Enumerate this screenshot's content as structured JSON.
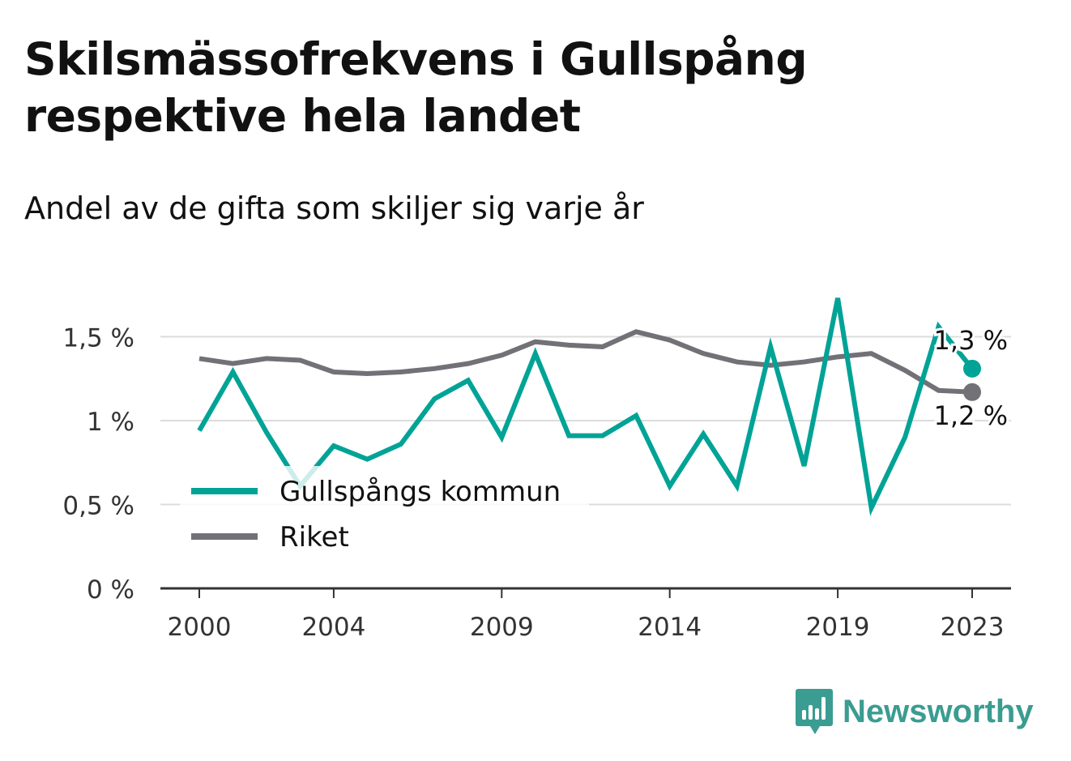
{
  "title": "Skilsmässofrekvens i Gullspång respektive hela landet",
  "subtitle": "Andel av de gifta som skiljer sig varje år",
  "brand": {
    "name": "Newsworthy",
    "icon": "bar-chart-speech-bubble-icon"
  },
  "colors": {
    "gullspang": "#00a396",
    "riket": "#727177",
    "grid": "#dcdcdc",
    "axis": "#333333",
    "brand": "#3b9c91"
  },
  "chart_data": {
    "type": "line",
    "x": [
      2000,
      2001,
      2002,
      2003,
      2004,
      2005,
      2006,
      2007,
      2008,
      2009,
      2010,
      2011,
      2012,
      2013,
      2014,
      2015,
      2016,
      2017,
      2018,
      2019,
      2020,
      2021,
      2022,
      2023
    ],
    "xticks": [
      2000,
      2004,
      2009,
      2014,
      2019,
      2023
    ],
    "xtick_labels": [
      "2000",
      "2004",
      "2009",
      "2014",
      "2019",
      "2023"
    ],
    "ylim": [
      0,
      1.8
    ],
    "yticks": [
      0,
      0.5,
      1,
      1.5
    ],
    "ytick_labels": [
      "0 %",
      "0,5 %",
      "1 %",
      "1,5 %"
    ],
    "grid": true,
    "legend_position": "bottom-left",
    "series": [
      {
        "name": "Gullspångs kommun",
        "key": "gullspang",
        "values": [
          0.94,
          1.29,
          0.93,
          0.61,
          0.85,
          0.77,
          0.86,
          1.13,
          1.24,
          0.9,
          1.4,
          0.91,
          0.91,
          1.03,
          0.61,
          0.92,
          0.61,
          1.44,
          0.73,
          1.73,
          0.48,
          0.9,
          1.56,
          1.31
        ],
        "end_label": "1,3 %"
      },
      {
        "name": "Riket",
        "key": "riket",
        "values": [
          1.37,
          1.34,
          1.37,
          1.36,
          1.29,
          1.28,
          1.29,
          1.31,
          1.34,
          1.39,
          1.47,
          1.45,
          1.44,
          1.53,
          1.48,
          1.4,
          1.35,
          1.33,
          1.35,
          1.38,
          1.4,
          1.3,
          1.18,
          1.17
        ],
        "end_label": "1,2 %"
      }
    ]
  }
}
